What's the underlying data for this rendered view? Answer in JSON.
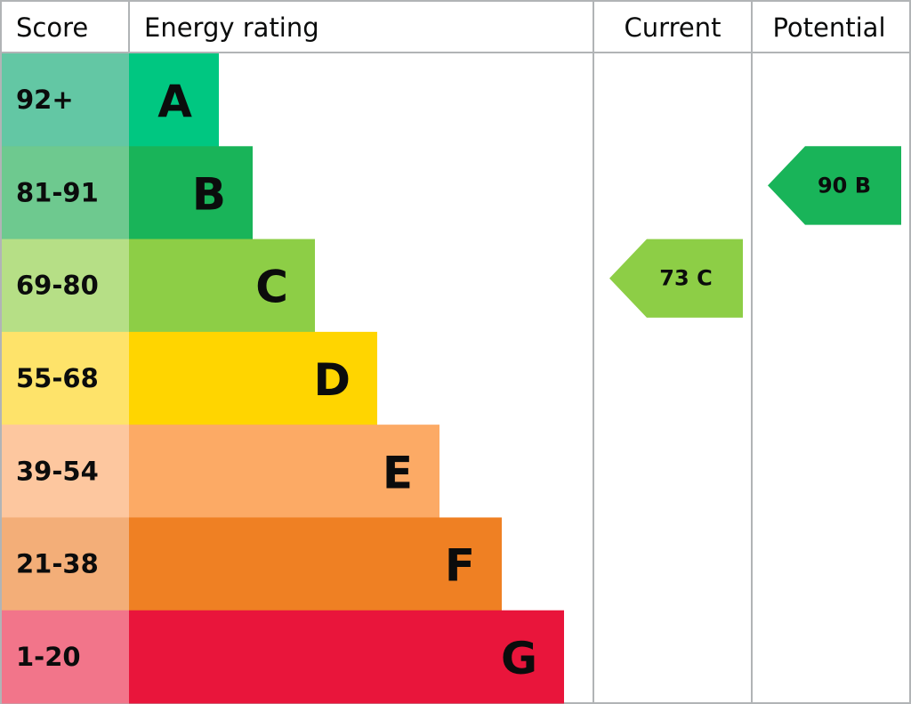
{
  "header": {
    "score": "Score",
    "rating": "Energy rating",
    "current": "Current",
    "potential": "Potential"
  },
  "bands": [
    {
      "score": "92+",
      "letter": "A",
      "color": "#00c781",
      "score_color": "#63c7a4"
    },
    {
      "score": "81-91",
      "letter": "B",
      "color": "#19b459",
      "score_color": "#6ec98f"
    },
    {
      "score": "69-80",
      "letter": "C",
      "color": "#8dce46",
      "score_color": "#b6df86"
    },
    {
      "score": "55-68",
      "letter": "D",
      "color": "#ffd500",
      "score_color": "#fee36a"
    },
    {
      "score": "39-54",
      "letter": "E",
      "color": "#fcaa65",
      "score_color": "#fdc79f"
    },
    {
      "score": "21-38",
      "letter": "F",
      "color": "#ef8023",
      "score_color": "#f3ae78"
    },
    {
      "score": "1-20",
      "letter": "G",
      "color": "#e9153b",
      "score_color": "#f2758a"
    }
  ],
  "current": {
    "score": 73,
    "rating": "C"
  },
  "potential": {
    "score": 90,
    "rating": "B"
  }
}
